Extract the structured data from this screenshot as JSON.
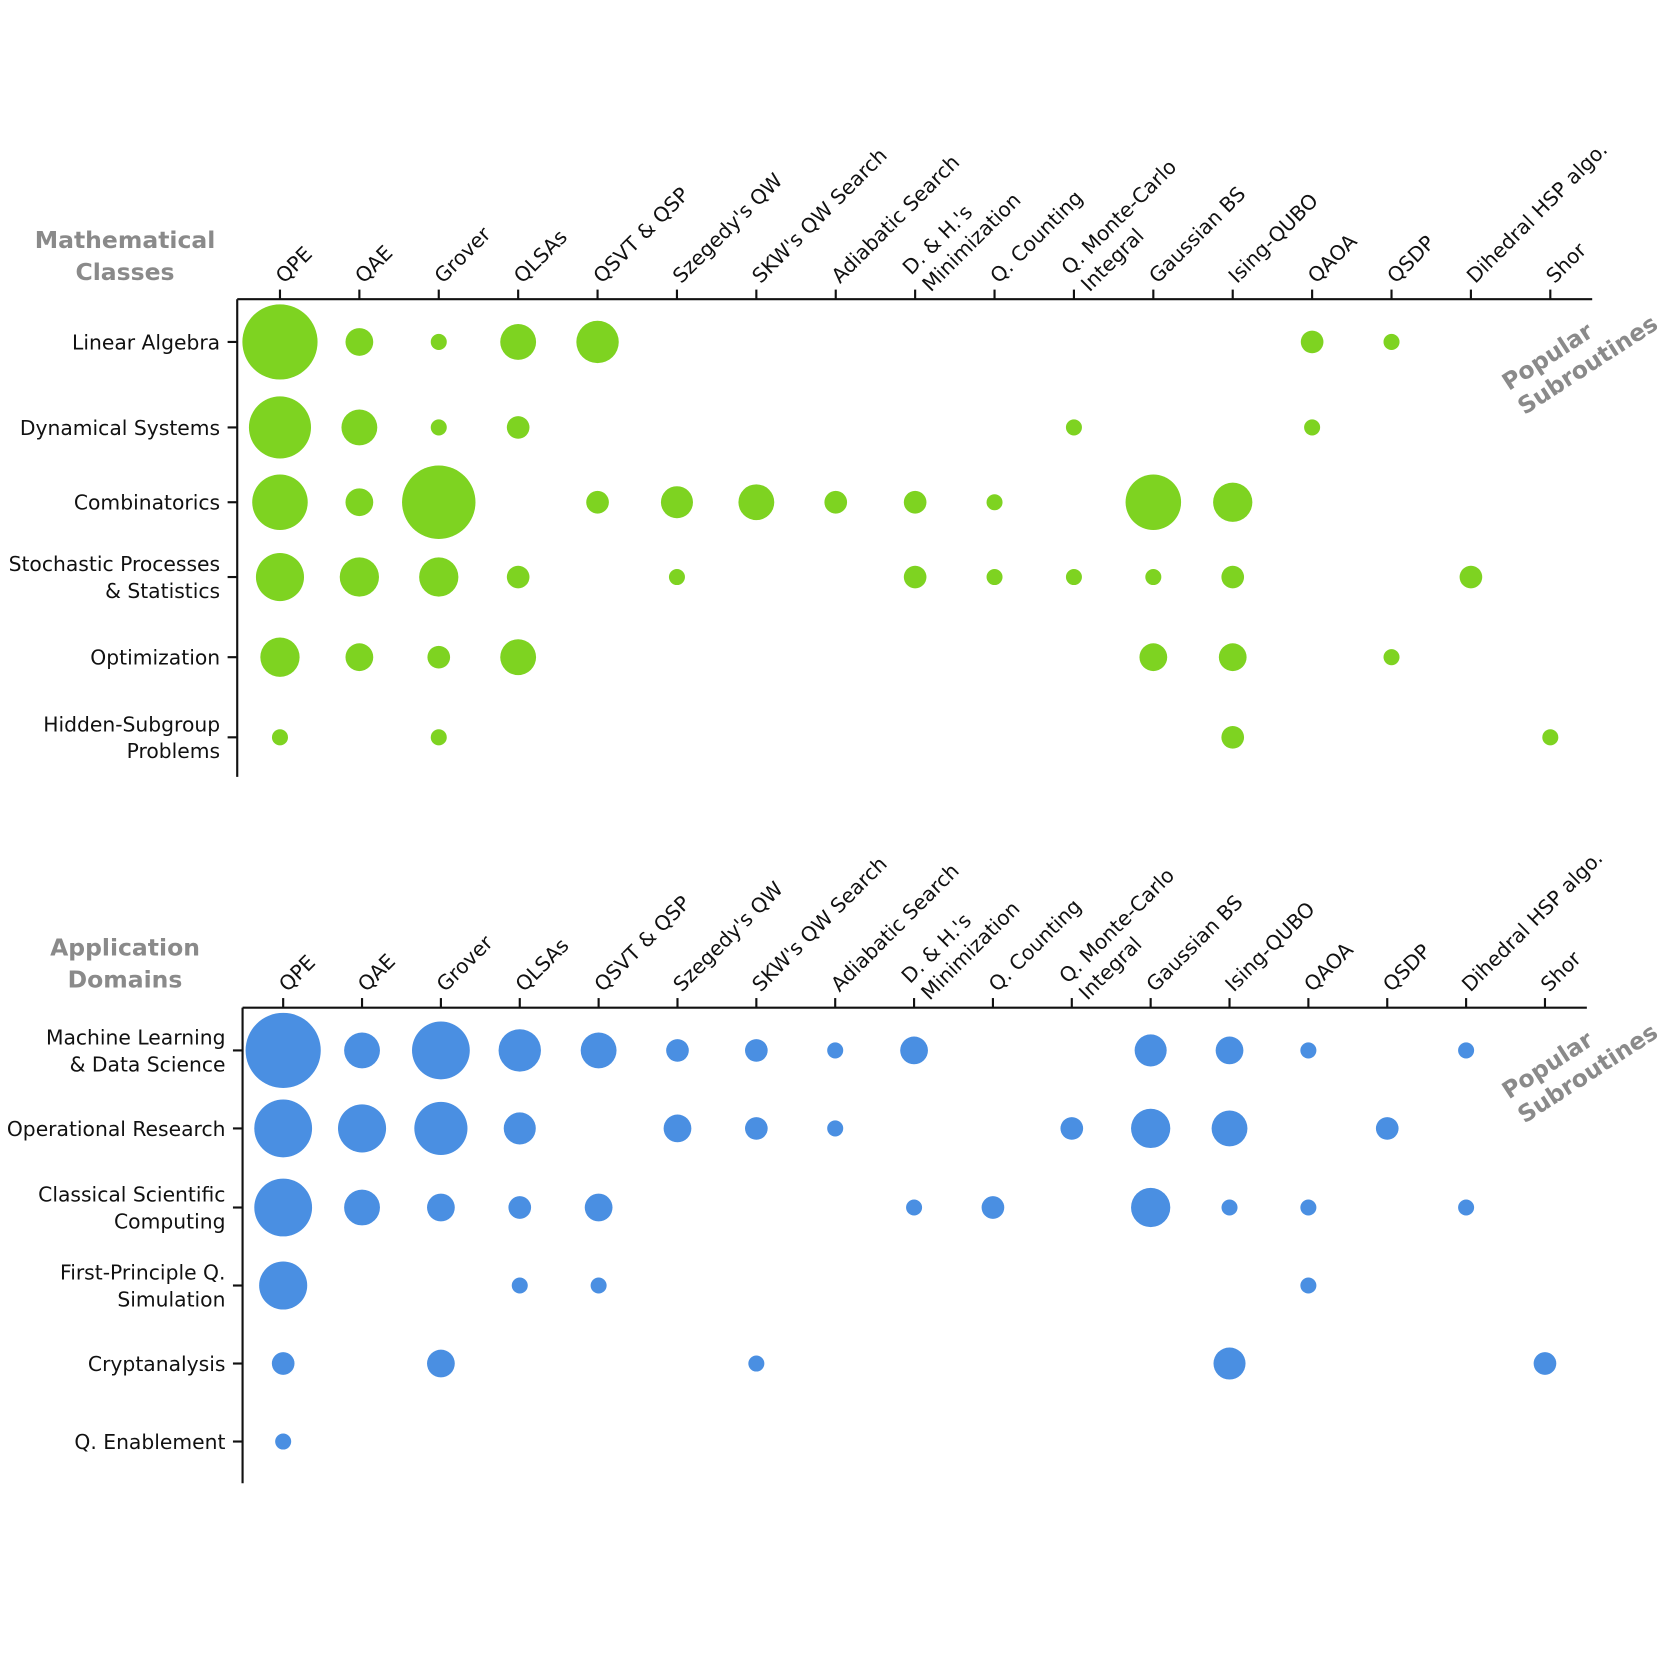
{
  "chart_data": [
    {
      "type": "bubble-matrix",
      "title": [
        "Mathematical",
        "Classes"
      ],
      "x_label": [
        "Popular",
        "Subroutines"
      ],
      "color": "#7ed321",
      "categories": [
        [
          "QPE"
        ],
        [
          "QAE"
        ],
        [
          "Grover"
        ],
        [
          "QLSAs"
        ],
        [
          "QSVT & QSP"
        ],
        [
          "Szegedy's QW"
        ],
        [
          "SKW's QW Search"
        ],
        [
          "Adiabatic Search"
        ],
        [
          "D. & H.'s",
          "Minimization"
        ],
        [
          "Q. Counting"
        ],
        [
          "Q. Monte-Carlo",
          "Integral"
        ],
        [
          "Gaussian BS"
        ],
        [
          "Ising-QUBO"
        ],
        [
          "QAOA"
        ],
        [
          "QSDP"
        ],
        [
          "Dihedral HSP algo."
        ],
        [
          "Shor"
        ]
      ],
      "rows": [
        [
          "Linear Algebra"
        ],
        [
          "Dynamical Systems"
        ],
        [
          "Combinatorics"
        ],
        [
          "Stochastic Processes",
          "& Statistics"
        ],
        [
          "Optimization"
        ],
        [
          "Hidden-Subgroup",
          "Problems"
        ]
      ],
      "values": [
        [
          22,
          3,
          1,
          5,
          7,
          null,
          null,
          null,
          null,
          null,
          null,
          null,
          null,
          2,
          1,
          null,
          null
        ],
        [
          15,
          5,
          1,
          2,
          null,
          null,
          null,
          null,
          null,
          null,
          1,
          null,
          null,
          1,
          null,
          null,
          null
        ],
        [
          12,
          3,
          21,
          null,
          2,
          4,
          5,
          2,
          2,
          1,
          null,
          12,
          6,
          null,
          null,
          null,
          null
        ],
        [
          9,
          6,
          6,
          2,
          null,
          1,
          null,
          null,
          2,
          1,
          1,
          1,
          2,
          null,
          null,
          2,
          null
        ],
        [
          6,
          3,
          2,
          5,
          null,
          null,
          null,
          null,
          null,
          null,
          null,
          3,
          3,
          null,
          1,
          null,
          null
        ],
        [
          1,
          null,
          1,
          null,
          null,
          null,
          null,
          null,
          null,
          null,
          null,
          null,
          2,
          null,
          null,
          null,
          1
        ]
      ]
    },
    {
      "type": "bubble-matrix",
      "title": [
        "Application",
        "Domains"
      ],
      "x_label": [
        "Popular",
        "Subroutines"
      ],
      "color": "#4a8fe2",
      "categories": [
        [
          "QPE"
        ],
        [
          "QAE"
        ],
        [
          "Grover"
        ],
        [
          "QLSAs"
        ],
        [
          "QSVT & QSP"
        ],
        [
          "Szegedy's QW"
        ],
        [
          "SKW's QW Search"
        ],
        [
          "Adiabatic Search"
        ],
        [
          "D. & H.'s",
          "Minimization"
        ],
        [
          "Q. Counting"
        ],
        [
          "Q. Monte-Carlo",
          "Integral"
        ],
        [
          "Gaussian BS"
        ],
        [
          "Ising-QUBO"
        ],
        [
          "QAOA"
        ],
        [
          "QSDP"
        ],
        [
          "Dihedral HSP algo."
        ],
        [
          "Shor"
        ]
      ],
      "rows": [
        [
          "Machine Learning",
          "& Data Science"
        ],
        [
          "Operational Research"
        ],
        [
          "Classical Scientific",
          "Computing"
        ],
        [
          "First-Principle Q.",
          "Simulation"
        ],
        [
          "Cryptanalysis"
        ],
        [
          "Q. Enablement"
        ]
      ],
      "values": [
        [
          22,
          5,
          13,
          7,
          5,
          2,
          2,
          1,
          3,
          null,
          null,
          4,
          3,
          1,
          null,
          1,
          null
        ],
        [
          13,
          9,
          11,
          4,
          null,
          3,
          2,
          1,
          null,
          null,
          2,
          6,
          5,
          null,
          2,
          null,
          null
        ],
        [
          13,
          5,
          3,
          2,
          3,
          null,
          null,
          null,
          1,
          2,
          null,
          6,
          1,
          1,
          null,
          1,
          null
        ],
        [
          9,
          null,
          null,
          1,
          1,
          null,
          null,
          null,
          null,
          null,
          null,
          null,
          null,
          1,
          null,
          null,
          null
        ],
        [
          2,
          null,
          3,
          null,
          null,
          null,
          1,
          null,
          null,
          null,
          null,
          null,
          4,
          null,
          null,
          null,
          2
        ],
        [
          1,
          null,
          null,
          null,
          null,
          null,
          null,
          null,
          null,
          null,
          null,
          null,
          null,
          null,
          null,
          null,
          null
        ]
      ]
    }
  ]
}
